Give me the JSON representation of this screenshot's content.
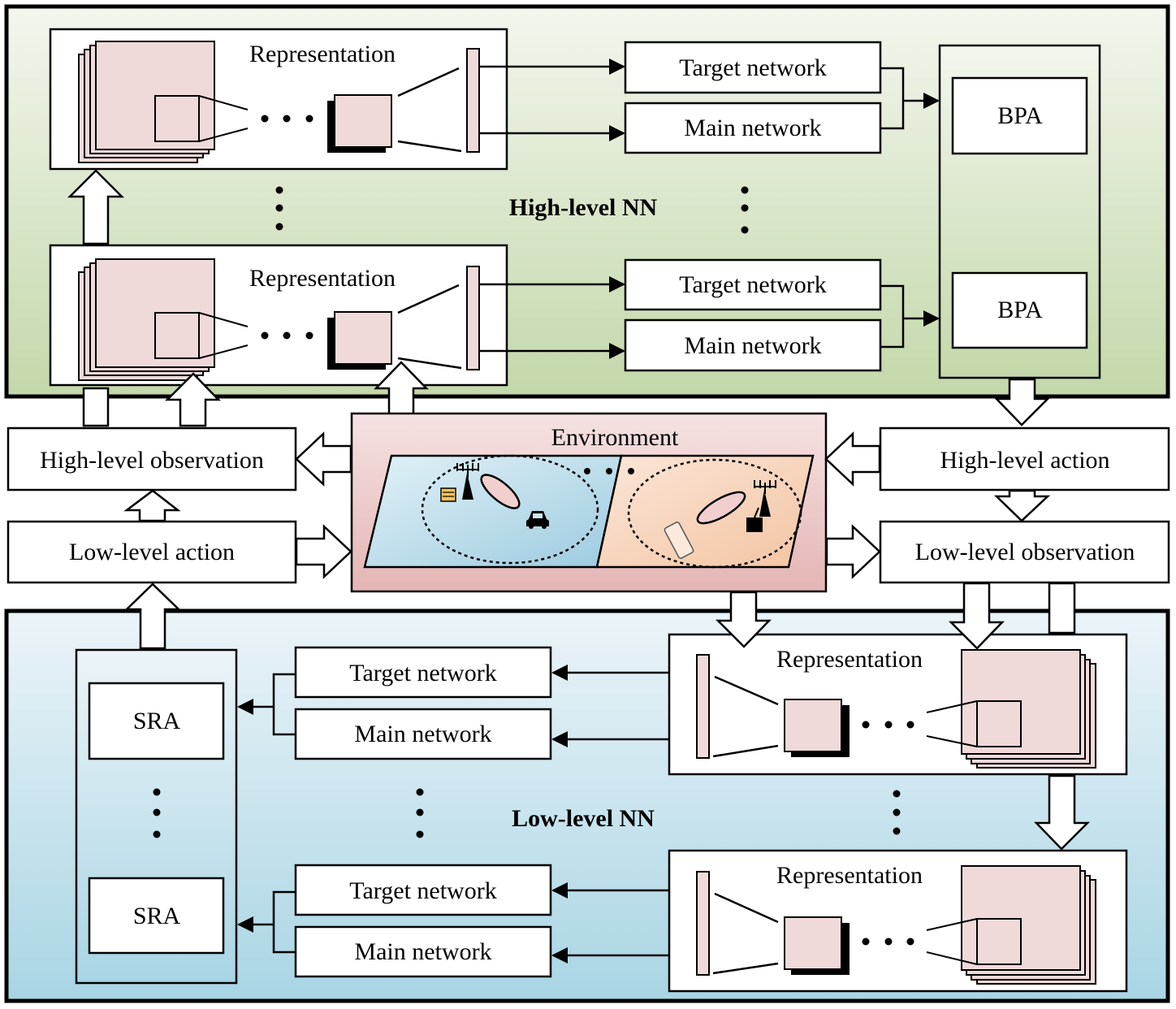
{
  "high_panel": {
    "title": "High-level NN",
    "representation_label": "Representation",
    "target_network_label": "Target network",
    "main_network_label": "Main network",
    "bpa_label": "BPA"
  },
  "low_panel": {
    "title": "Low-level NN",
    "representation_label": "Representation",
    "target_network_label": "Target network",
    "main_network_label": "Main network",
    "sra_label": "SRA"
  },
  "environment": {
    "title": "Environment"
  },
  "flow": {
    "high_level_observation": "High-level observation",
    "low_level_action": "Low-level action",
    "high_level_action": "High-level action",
    "low_level_observation": "Low-level observation"
  },
  "colors": {
    "high_panel_top": "#f2f5eb",
    "high_panel_bottom": "#c5d9ad",
    "low_panel_top": "#eaf3f8",
    "low_panel_bottom": "#a9d6e5",
    "feature_map_fill": "#f0d9d9",
    "env_region_left": "#b9dbea",
    "env_region_right": "#f6cfb3"
  },
  "icons": [
    "antenna-icon",
    "car-icon",
    "smartphone-icon",
    "server-icon",
    "router-icon"
  ]
}
